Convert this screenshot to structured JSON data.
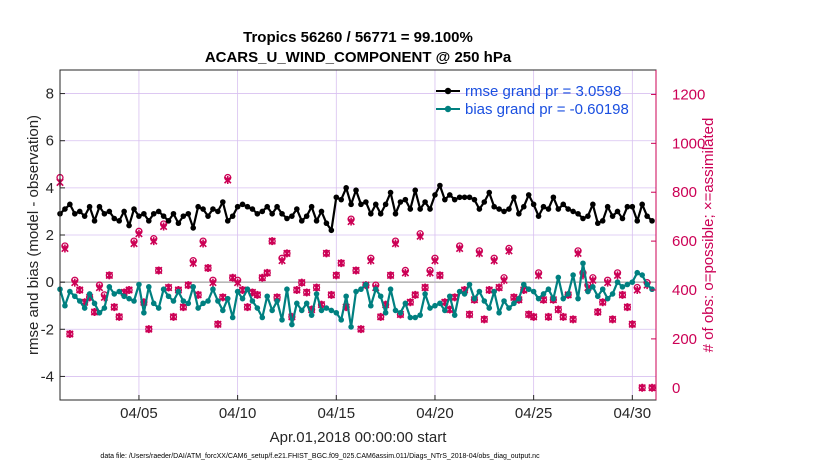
{
  "colors": {
    "rmse": "#000000",
    "bias": "#008080",
    "obs": "#cc0055",
    "legend_text": "#1a4fe0",
    "grid": "#d8c0f0",
    "zero_line": "#b8b8b8"
  },
  "chart_data": {
    "type": "line",
    "title": "Tropics 56260 / 56771 = 99.100%",
    "subtitle": "ACARS_U_WIND_COMPONENT @ 250 hPa",
    "xlabel": "Apr.01,2018 00:00:00 start",
    "ylabel": "rmse and bias (model - observation)",
    "y2label": "# of obs: o=possible; ×=assimilated",
    "footnote": "data file: /Users/raeder/DAI/ATM_forcXX/CAM6_setup/f.e21.FHIST_BGC.f09_025.CAM6assim.011/Diags_NTrS_2018-04/obs_diag_output.nc",
    "xlim": [
      1.0,
      31.2
    ],
    "ylim": [
      -5,
      9
    ],
    "y2lim": [
      -50,
      1300
    ],
    "xticks": [
      5,
      10,
      15,
      20,
      25,
      30
    ],
    "xticklabels": [
      "04/05",
      "04/10",
      "04/15",
      "04/20",
      "04/25",
      "04/30"
    ],
    "yticks": [
      -4,
      -2,
      0,
      2,
      4,
      6,
      8
    ],
    "yticklabels": [
      "-4",
      "-2",
      "0",
      "2",
      "4",
      "6",
      "8"
    ],
    "y2ticks": [
      0,
      200,
      400,
      600,
      800,
      1000,
      1200
    ],
    "y2ticklabels": [
      "0",
      "200",
      "400",
      "600",
      "800",
      "1000",
      "1200"
    ],
    "legend": [
      {
        "name": "rmse",
        "label": "rmse grand pr = 3.0598"
      },
      {
        "name": "bias",
        "label": "bias grand pr = -0.60198"
      }
    ],
    "legend_position": "top-right",
    "grid": true,
    "series": [
      {
        "name": "rmse",
        "axis": "left",
        "x": [
          1.0,
          1.25,
          1.5,
          1.75,
          2.0,
          2.25,
          2.5,
          2.75,
          3.0,
          3.25,
          3.5,
          3.75,
          4.0,
          4.25,
          4.5,
          4.75,
          5.0,
          5.25,
          5.5,
          5.75,
          6.0,
          6.25,
          6.5,
          6.75,
          7.0,
          7.25,
          7.5,
          7.75,
          8.0,
          8.25,
          8.5,
          8.75,
          9.0,
          9.25,
          9.5,
          9.75,
          10.0,
          10.25,
          10.5,
          10.75,
          11.0,
          11.25,
          11.5,
          11.75,
          12.0,
          12.25,
          12.5,
          12.75,
          13.0,
          13.25,
          13.5,
          13.75,
          14.0,
          14.25,
          14.5,
          14.75,
          15.0,
          15.25,
          15.5,
          15.75,
          16.0,
          16.25,
          16.5,
          16.75,
          17.0,
          17.25,
          17.5,
          17.75,
          18.0,
          18.25,
          18.5,
          18.75,
          19.0,
          19.25,
          19.5,
          19.75,
          20.0,
          20.25,
          20.5,
          20.75,
          21.0,
          21.25,
          21.5,
          21.75,
          22.0,
          22.25,
          22.5,
          22.75,
          23.0,
          23.25,
          23.5,
          23.75,
          24.0,
          24.25,
          24.5,
          24.75,
          25.0,
          25.25,
          25.5,
          25.75,
          26.0,
          26.25,
          26.5,
          26.75,
          27.0,
          27.25,
          27.5,
          27.75,
          28.0,
          28.25,
          28.5,
          28.75,
          29.0,
          29.25,
          29.5,
          29.75,
          30.0,
          30.25,
          30.5,
          30.75,
          31.0
        ],
        "values": [
          2.9,
          3.1,
          3.3,
          2.9,
          3.0,
          2.8,
          3.2,
          2.6,
          3.2,
          2.9,
          3.0,
          2.7,
          2.6,
          3.0,
          2.4,
          3.1,
          2.8,
          2.9,
          2.6,
          2.9,
          3.0,
          2.8,
          2.6,
          2.9,
          2.5,
          2.8,
          2.9,
          2.3,
          3.2,
          3.1,
          2.8,
          3.1,
          3.0,
          3.4,
          2.6,
          2.8,
          3.2,
          3.3,
          3.2,
          3.1,
          2.9,
          3.0,
          3.2,
          2.9,
          3.2,
          2.9,
          2.7,
          2.8,
          3.1,
          2.6,
          2.8,
          3.2,
          2.6,
          3.0,
          2.5,
          2.2,
          3.6,
          3.5,
          4.0,
          3.3,
          3.9,
          3.3,
          3.4,
          2.9,
          3.3,
          2.9,
          3.3,
          3.8,
          2.9,
          3.4,
          3.5,
          3.1,
          3.9,
          3.1,
          3.4,
          3.1,
          3.7,
          4.1,
          3.5,
          3.7,
          3.5,
          3.6,
          3.6,
          3.6,
          3.5,
          3.1,
          3.4,
          3.8,
          3.2,
          3.1,
          3.0,
          3.1,
          3.6,
          2.9,
          3.2,
          3.7,
          3.3,
          2.8,
          3.2,
          3.1,
          3.6,
          3.1,
          3.3,
          3.1,
          3.0,
          2.9,
          2.7,
          2.8,
          3.3,
          2.5,
          2.6,
          3.2,
          2.8,
          3.0,
          2.7,
          3.2,
          3.2,
          2.6,
          3.3,
          2.8,
          2.6
        ]
      },
      {
        "name": "bias",
        "axis": "left",
        "x": [
          1.0,
          1.25,
          1.5,
          1.75,
          2.0,
          2.25,
          2.5,
          2.75,
          3.0,
          3.25,
          3.5,
          3.75,
          4.0,
          4.25,
          4.5,
          4.75,
          5.0,
          5.25,
          5.5,
          5.75,
          6.0,
          6.25,
          6.5,
          6.75,
          7.0,
          7.25,
          7.5,
          7.75,
          8.0,
          8.25,
          8.5,
          8.75,
          9.0,
          9.25,
          9.5,
          9.75,
          10.0,
          10.25,
          10.5,
          10.75,
          11.0,
          11.25,
          11.5,
          11.75,
          12.0,
          12.25,
          12.5,
          12.75,
          13.0,
          13.25,
          13.5,
          13.75,
          14.0,
          14.25,
          14.5,
          14.75,
          15.0,
          15.25,
          15.5,
          15.75,
          16.0,
          16.25,
          16.5,
          16.75,
          17.0,
          17.25,
          17.5,
          17.75,
          18.0,
          18.25,
          18.5,
          18.75,
          19.0,
          19.25,
          19.5,
          19.75,
          20.0,
          20.25,
          20.5,
          20.75,
          21.0,
          21.25,
          21.5,
          21.75,
          22.0,
          22.25,
          22.5,
          22.75,
          23.0,
          23.25,
          23.5,
          23.75,
          24.0,
          24.25,
          24.5,
          24.75,
          25.0,
          25.25,
          25.5,
          25.75,
          26.0,
          26.25,
          26.5,
          26.75,
          27.0,
          27.25,
          27.5,
          27.75,
          28.0,
          28.25,
          28.5,
          28.75,
          29.0,
          29.25,
          29.5,
          29.75,
          30.0,
          30.25,
          30.5,
          30.75,
          31.0
        ],
        "values": [
          -0.3,
          -1.0,
          -0.4,
          -0.6,
          -0.8,
          -1.1,
          -0.5,
          -0.9,
          -1.3,
          -1.1,
          -0.2,
          -0.5,
          -0.4,
          -0.6,
          -0.7,
          -0.8,
          -0.1,
          -1.3,
          -0.2,
          -0.9,
          -1.1,
          -0.3,
          -0.6,
          -0.8,
          -0.4,
          -0.8,
          -0.9,
          -0.2,
          -1.1,
          -0.9,
          -0.8,
          -0.3,
          -0.8,
          -1.2,
          -0.7,
          -1.5,
          -0.4,
          -0.7,
          -0.3,
          -0.8,
          -1.1,
          -1.5,
          -0.6,
          -1.2,
          -0.8,
          -1.6,
          -0.3,
          -1.8,
          -0.9,
          -1.2,
          -0.9,
          -1.4,
          -0.5,
          -1.2,
          -1.1,
          -1.2,
          -1.3,
          -1.6,
          -0.6,
          -1.9,
          -0.4,
          -0.3,
          -0.1,
          -1.0,
          -0.3,
          -0.6,
          -1.3,
          -0.3,
          -1.2,
          -1.3,
          -0.9,
          -1.5,
          -1.5,
          -1.4,
          -0.5,
          -1.1,
          -1.0,
          -0.9,
          -1.2,
          -0.6,
          -1.4,
          -0.4,
          -0.5,
          -0.1,
          -0.7,
          -0.4,
          -0.8,
          -1.1,
          -0.4,
          -1.3,
          -0.8,
          -1.1,
          -0.9,
          -0.7,
          -0.1,
          -0.3,
          -0.4,
          -0.7,
          -0.5,
          -0.3,
          -0.7,
          0.2,
          -0.7,
          -0.5,
          0.3,
          -0.7,
          0.8,
          -0.4,
          -0.2,
          -0.6,
          -0.3,
          -0.7,
          -0.5,
          0.0,
          -0.2,
          -0.1,
          0.0,
          0.4,
          0.3,
          -0.1,
          -0.3
        ]
      },
      {
        "name": "obs_possible",
        "axis": "right",
        "marker": "o",
        "x": [
          1.0,
          1.25,
          1.5,
          1.75,
          2.0,
          2.25,
          2.5,
          2.75,
          3.0,
          3.25,
          3.5,
          3.75,
          4.0,
          4.25,
          4.5,
          4.75,
          5.0,
          5.25,
          5.5,
          5.75,
          6.0,
          6.25,
          6.5,
          6.75,
          7.0,
          7.25,
          7.5,
          7.75,
          8.0,
          8.25,
          8.5,
          8.75,
          9.0,
          9.25,
          9.5,
          9.75,
          10.0,
          10.25,
          10.5,
          10.75,
          11.0,
          11.25,
          11.5,
          11.75,
          12.0,
          12.25,
          12.5,
          12.75,
          13.0,
          13.25,
          13.5,
          13.75,
          14.0,
          14.25,
          14.5,
          14.75,
          15.0,
          15.25,
          15.5,
          15.75,
          16.0,
          16.25,
          16.5,
          16.75,
          17.0,
          17.25,
          17.5,
          17.75,
          18.0,
          18.25,
          18.5,
          18.75,
          19.0,
          19.25,
          19.5,
          19.75,
          20.0,
          20.25,
          20.5,
          20.75,
          21.0,
          21.25,
          21.5,
          21.75,
          22.0,
          22.25,
          22.5,
          22.75,
          23.0,
          23.25,
          23.5,
          23.75,
          24.0,
          24.25,
          24.5,
          24.75,
          25.0,
          25.25,
          25.5,
          25.75,
          26.0,
          26.25,
          26.5,
          26.75,
          27.0,
          27.25,
          27.5,
          27.75,
          28.0,
          28.25,
          28.5,
          28.75,
          29.0,
          29.25,
          29.5,
          29.75,
          30.0,
          30.25,
          30.5,
          30.75,
          31.0
        ],
        "values": [
          860,
          580,
          220,
          440,
          400,
          350,
          370,
          310,
          420,
          380,
          460,
          330,
          290,
          390,
          400,
          600,
          640,
          350,
          240,
          610,
          480,
          670,
          410,
          290,
          400,
          330,
          420,
          520,
          380,
          600,
          490,
          440,
          260,
          370,
          860,
          450,
          440,
          400,
          330,
          390,
          380,
          450,
          470,
          600,
          370,
          530,
          550,
          290,
          400,
          430,
          390,
          320,
          410,
          340,
          550,
          380,
          460,
          510,
          330,
          690,
          480,
          240,
          420,
          530,
          420,
          290,
          340,
          460,
          600,
          300,
          480,
          350,
          380,
          630,
          410,
          480,
          530,
          460,
          350,
          320,
          370,
          580,
          400,
          300,
          360,
          560,
          280,
          400,
          530,
          410,
          450,
          570,
          370,
          360,
          400,
          300,
          290,
          470,
          360,
          290,
          360,
          320,
          290,
          380,
          280,
          560,
          470,
          420,
          450,
          310,
          350,
          440,
          280,
          470,
          380,
          330,
          260,
          410,
          0,
          430,
          0
        ]
      },
      {
        "name": "obs_assimilated",
        "axis": "right",
        "marker": "x",
        "x": [
          1.0,
          1.25,
          1.5,
          1.75,
          2.0,
          2.25,
          2.5,
          2.75,
          3.0,
          3.25,
          3.5,
          3.75,
          4.0,
          4.25,
          4.5,
          4.75,
          5.0,
          5.25,
          5.5,
          5.75,
          6.0,
          6.25,
          6.5,
          6.75,
          7.0,
          7.25,
          7.5,
          7.75,
          8.0,
          8.25,
          8.5,
          8.75,
          9.0,
          9.25,
          9.5,
          9.75,
          10.0,
          10.25,
          10.5,
          10.75,
          11.0,
          11.25,
          11.5,
          11.75,
          12.0,
          12.25,
          12.5,
          12.75,
          13.0,
          13.25,
          13.5,
          13.75,
          14.0,
          14.25,
          14.5,
          14.75,
          15.0,
          15.25,
          15.5,
          15.75,
          16.0,
          16.25,
          16.5,
          16.75,
          17.0,
          17.25,
          17.5,
          17.75,
          18.0,
          18.25,
          18.5,
          18.75,
          19.0,
          19.25,
          19.5,
          19.75,
          20.0,
          20.25,
          20.5,
          20.75,
          21.0,
          21.25,
          21.5,
          21.75,
          22.0,
          22.25,
          22.5,
          22.75,
          23.0,
          23.25,
          23.5,
          23.75,
          24.0,
          24.25,
          24.5,
          24.75,
          25.0,
          25.25,
          25.5,
          25.75,
          26.0,
          26.25,
          26.5,
          26.75,
          27.0,
          27.25,
          27.5,
          27.75,
          28.0,
          28.25,
          28.5,
          28.75,
          29.0,
          29.25,
          29.5,
          29.75,
          30.0,
          30.25,
          30.5,
          30.75,
          31.0
        ],
        "values": [
          840,
          570,
          220,
          430,
          400,
          350,
          370,
          310,
          410,
          370,
          460,
          330,
          290,
          390,
          400,
          590,
          630,
          350,
          240,
          600,
          480,
          660,
          410,
          290,
          400,
          330,
          420,
          510,
          380,
          590,
          490,
          430,
          260,
          370,
          850,
          450,
          430,
          400,
          330,
          390,
          380,
          450,
          470,
          600,
          370,
          520,
          550,
          290,
          400,
          430,
          390,
          320,
          410,
          340,
          550,
          380,
          460,
          510,
          330,
          680,
          480,
          240,
          420,
          520,
          410,
          290,
          340,
          460,
          590,
          300,
          470,
          350,
          380,
          620,
          410,
          470,
          520,
          460,
          350,
          320,
          370,
          570,
          400,
          300,
          360,
          550,
          280,
          400,
          520,
          410,
          440,
          560,
          370,
          360,
          400,
          300,
          290,
          460,
          360,
          290,
          360,
          320,
          290,
          380,
          280,
          550,
          460,
          410,
          440,
          310,
          350,
          430,
          280,
          460,
          380,
          330,
          260,
          400,
          0,
          420,
          0
        ]
      }
    ]
  }
}
